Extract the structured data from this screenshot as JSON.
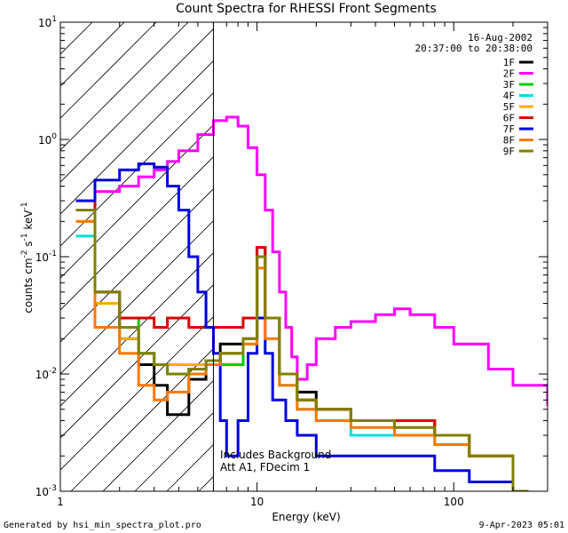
{
  "chart_data": {
    "type": "line",
    "title": "Count Spectra for RHESSI Front Segments",
    "xlabel": "Energy (keV)",
    "ylabel": "counts cm-2 s-1 keV-1",
    "xscale": "log",
    "yscale": "log",
    "xlim": [
      1,
      300
    ],
    "ylim": [
      0.001,
      10
    ],
    "x_tick_labels": [
      "1",
      "10",
      "100"
    ],
    "y_tick_labels": [
      "10-3",
      "10-2",
      "10-1",
      "100",
      "101"
    ],
    "date": "16-Aug-2002",
    "time_range": "20:37:00 to 20:38:00",
    "annotation_lines": [
      "Includes Background",
      "Att A1, FDecim 1"
    ],
    "shaded_region_xmax": 6,
    "legend_position": "top-right",
    "series": [
      {
        "name": "1F",
        "color": "#000000",
        "x": [
          1.2,
          1.5,
          2.0,
          2.5,
          3.0,
          3.5,
          4.5,
          5.5,
          6.5,
          8.5,
          10.0,
          11.0,
          13.0,
          16.0,
          20.0,
          30.0,
          50.0,
          80.0,
          120.0,
          200.0
        ],
        "values": [
          0.3,
          0.04,
          0.02,
          0.012,
          0.008,
          0.0045,
          0.009,
          0.012,
          0.018,
          0.02,
          0.12,
          0.03,
          0.01,
          0.007,
          0.005,
          0.004,
          0.004,
          0.003,
          0.002,
          0.001
        ]
      },
      {
        "name": "2F",
        "color": "#ff00ff",
        "x": [
          1.2,
          1.5,
          2.0,
          2.5,
          3.0,
          3.5,
          4.0,
          5.0,
          6.0,
          7.0,
          8.0,
          9.0,
          10.0,
          11.0,
          12.0,
          13.0,
          14.0,
          15.0,
          16.0,
          18.0,
          20.0,
          25.0,
          30.0,
          40.0,
          50.0,
          60.0,
          80.0,
          100.0,
          150.0,
          200.0,
          300.0
        ],
        "values": [
          0.25,
          0.36,
          0.4,
          0.48,
          0.55,
          0.65,
          0.8,
          1.1,
          1.45,
          1.55,
          1.3,
          0.85,
          0.5,
          0.25,
          0.11,
          0.05,
          0.025,
          0.014,
          0.009,
          0.012,
          0.02,
          0.025,
          0.028,
          0.032,
          0.036,
          0.032,
          0.025,
          0.018,
          0.011,
          0.008,
          0.0055
        ]
      },
      {
        "name": "3F",
        "color": "#00cc00",
        "x": [
          1.2,
          1.5,
          2.0,
          2.5,
          3.0,
          3.5,
          4.5,
          5.5,
          6.5,
          8.5,
          10.0,
          11.0,
          13.0,
          16.0,
          20.0,
          30.0,
          50.0,
          80.0,
          120.0,
          200.0
        ],
        "values": [
          0.25,
          0.05,
          0.03,
          0.015,
          0.012,
          0.01,
          0.011,
          0.012,
          0.012,
          0.018,
          0.1,
          0.03,
          0.01,
          0.006,
          0.005,
          0.004,
          0.004,
          0.003,
          0.002,
          0.001
        ]
      },
      {
        "name": "4F",
        "color": "#00e0e0",
        "x": [
          1.2,
          1.5,
          2.0,
          2.5,
          3.0,
          3.5,
          4.5,
          5.5,
          6.5,
          8.5,
          10.0,
          11.0,
          13.0,
          16.0,
          20.0,
          30.0,
          50.0,
          80.0,
          120.0,
          200.0
        ],
        "values": [
          0.15,
          0.025,
          0.02,
          0.015,
          0.012,
          0.01,
          0.011,
          0.012,
          0.015,
          0.02,
          0.1,
          0.03,
          0.008,
          0.005,
          0.004,
          0.003,
          0.003,
          0.0025,
          0.002,
          0.001
        ]
      },
      {
        "name": "5F",
        "color": "#ffaa00",
        "x": [
          1.2,
          1.5,
          2.0,
          2.5,
          3.0,
          3.5,
          4.5,
          5.5,
          6.5,
          8.5,
          10.0,
          11.0,
          13.0,
          16.0,
          20.0,
          30.0,
          50.0,
          80.0,
          120.0,
          200.0
        ],
        "values": [
          0.2,
          0.04,
          0.02,
          0.015,
          0.012,
          0.012,
          0.012,
          0.013,
          0.015,
          0.02,
          0.1,
          0.03,
          0.01,
          0.006,
          0.005,
          0.004,
          0.0035,
          0.003,
          0.002,
          0.001
        ]
      },
      {
        "name": "6F",
        "color": "#e00000",
        "x": [
          1.2,
          1.5,
          2.0,
          2.5,
          3.0,
          3.5,
          4.5,
          5.5,
          6.5,
          8.5,
          10.0,
          11.0,
          13.0,
          16.0,
          20.0,
          30.0,
          50.0,
          80.0,
          120.0,
          200.0
        ],
        "values": [
          0.3,
          0.05,
          0.03,
          0.03,
          0.025,
          0.03,
          0.025,
          0.025,
          0.025,
          0.03,
          0.12,
          0.03,
          0.01,
          0.006,
          0.005,
          0.004,
          0.004,
          0.003,
          0.002,
          0.001
        ]
      },
      {
        "name": "7F",
        "color": "#0000dd",
        "x": [
          1.2,
          1.5,
          2.0,
          2.5,
          3.0,
          3.5,
          4.0,
          4.5,
          5.0,
          5.5,
          6.0,
          6.5,
          7.0,
          8.0,
          9.0,
          10.0,
          11.0,
          12.0,
          14.0,
          16.0,
          20.0,
          30.0,
          50.0,
          80.0,
          120.0,
          200.0
        ],
        "values": [
          0.3,
          0.45,
          0.55,
          0.62,
          0.58,
          0.4,
          0.25,
          0.1,
          0.05,
          0.025,
          0.015,
          0.004,
          0.002,
          0.004,
          0.015,
          0.03,
          0.015,
          0.006,
          0.004,
          0.003,
          0.002,
          0.002,
          0.002,
          0.0015,
          0.0012,
          0.001
        ]
      },
      {
        "name": "8F",
        "color": "#ff7700",
        "x": [
          1.2,
          1.5,
          2.0,
          2.5,
          3.0,
          3.5,
          4.5,
          5.5,
          6.5,
          8.5,
          10.0,
          11.0,
          13.0,
          16.0,
          20.0,
          30.0,
          50.0,
          80.0,
          120.0,
          200.0
        ],
        "values": [
          0.2,
          0.025,
          0.015,
          0.008,
          0.006,
          0.007,
          0.01,
          0.012,
          0.015,
          0.018,
          0.08,
          0.02,
          0.008,
          0.005,
          0.004,
          0.0035,
          0.003,
          0.0025,
          0.002,
          0.001
        ]
      },
      {
        "name": "9F",
        "color": "#808000",
        "x": [
          1.2,
          1.5,
          2.0,
          2.5,
          3.0,
          3.5,
          4.5,
          5.5,
          6.5,
          8.5,
          10.0,
          11.0,
          13.0,
          16.0,
          20.0,
          30.0,
          50.0,
          80.0,
          120.0,
          200.0
        ],
        "values": [
          0.25,
          0.05,
          0.025,
          0.015,
          0.012,
          0.01,
          0.011,
          0.013,
          0.015,
          0.02,
          0.1,
          0.03,
          0.01,
          0.006,
          0.005,
          0.004,
          0.0035,
          0.003,
          0.002,
          0.001
        ]
      }
    ]
  },
  "footer": {
    "generated_by": "Generated by hsi_min_spectra_plot.pro",
    "timestamp": "9-Apr-2023 05:01"
  }
}
